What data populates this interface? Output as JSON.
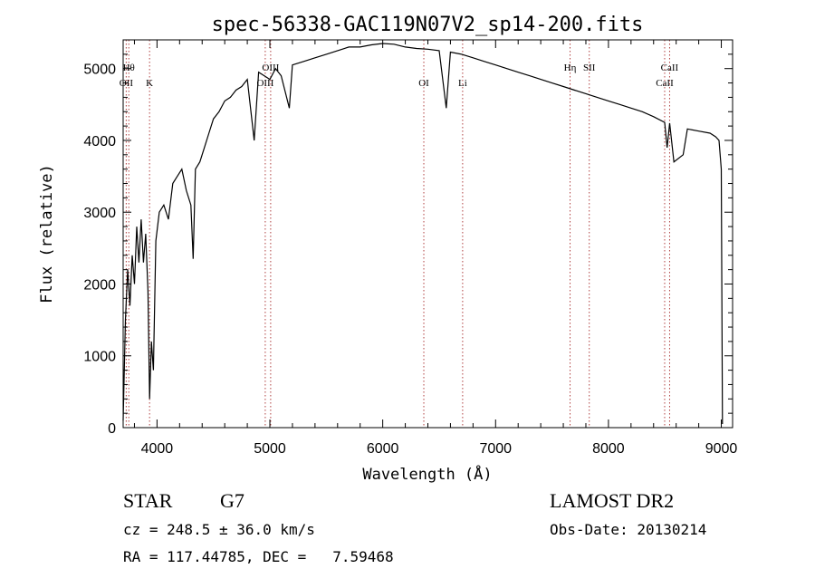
{
  "chart_data": {
    "type": "line",
    "title": "spec-56338-GAC119N07V2_sp14-200.fits",
    "xlabel": "Wavelength (Å)",
    "ylabel": "Flux (relative)",
    "xlim": [
      3700,
      9100
    ],
    "ylim": [
      0,
      5400
    ],
    "x_ticks": [
      4000,
      5000,
      6000,
      7000,
      8000,
      9000
    ],
    "x_tick_labels": [
      "4000",
      "5000",
      "6000",
      "7000",
      "8000",
      "9000"
    ],
    "y_ticks": [
      0,
      1000,
      2000,
      3000,
      4000,
      5000
    ],
    "y_tick_labels": [
      "0",
      "1000",
      "2000",
      "3000",
      "4000",
      "5000"
    ],
    "grid": false,
    "series": [
      {
        "x": [
          3700,
          3720,
          3740,
          3760,
          3780,
          3800,
          3820,
          3840,
          3860,
          3880,
          3900,
          3920,
          3934,
          3950,
          3968,
          3990,
          4020,
          4060,
          4101,
          4140,
          4180,
          4220,
          4260,
          4300,
          4320,
          4340,
          4380,
          4420,
          4460,
          4500,
          4550,
          4600,
          4650,
          4700,
          4750,
          4800,
          4861,
          4900,
          4950,
          5000,
          5050,
          5100,
          5172,
          5200,
          5300,
          5400,
          5500,
          5600,
          5700,
          5800,
          5900,
          6000,
          6100,
          6200,
          6300,
          6400,
          6500,
          6563,
          6600,
          6700,
          6800,
          6900,
          7000,
          7100,
          7200,
          7300,
          7400,
          7500,
          7600,
          7700,
          7800,
          7900,
          8000,
          8100,
          8200,
          8300,
          8400,
          8498,
          8520,
          8542,
          8580,
          8662,
          8700,
          8800,
          8900,
          8950,
          8980,
          9000,
          9010
        ],
        "y": [
          100,
          1500,
          2200,
          1700,
          2400,
          2000,
          2800,
          2300,
          2900,
          2300,
          2700,
          1900,
          400,
          1200,
          800,
          2600,
          3000,
          3100,
          2900,
          3400,
          3500,
          3600,
          3300,
          3100,
          2350,
          3600,
          3700,
          3900,
          4100,
          4300,
          4400,
          4550,
          4600,
          4700,
          4750,
          4850,
          4000,
          4950,
          4900,
          4850,
          5000,
          4900,
          4450,
          5050,
          5100,
          5150,
          5200,
          5250,
          5300,
          5300,
          5330,
          5350,
          5340,
          5300,
          5280,
          5270,
          5250,
          4450,
          5230,
          5200,
          5150,
          5100,
          5050,
          5000,
          4950,
          4900,
          4850,
          4800,
          4750,
          4700,
          4650,
          4600,
          4550,
          4500,
          4450,
          4400,
          4330,
          4250,
          3900,
          4240,
          3700,
          3800,
          4160,
          4130,
          4100,
          4050,
          4000,
          3600,
          50
        ]
      }
    ],
    "line_markers": [
      {
        "x": 3727,
        "label": "OII",
        "row": 2
      },
      {
        "x": 3750,
        "label": "Hθ",
        "row": 1
      },
      {
        "x": 3934,
        "label": "K",
        "row": 2
      },
      {
        "x": 4959,
        "label": "OIII",
        "row": 2
      },
      {
        "x": 5007,
        "label": "OIII",
        "row": 1
      },
      {
        "x": 6364,
        "label": "OI",
        "row": 2
      },
      {
        "x": 6708,
        "label": "Li",
        "row": 2
      },
      {
        "x": 7660,
        "label": "Hη",
        "row": 1
      },
      {
        "x": 7830,
        "label": "SII",
        "row": 1
      },
      {
        "x": 8498,
        "label": "CaII",
        "row": 2
      },
      {
        "x": 8542,
        "label": "CaII",
        "row": 1
      }
    ]
  },
  "info": {
    "object_class": "STAR",
    "subclass": "G7",
    "survey": "LAMOST DR2",
    "cz": "cz = 248.5 ± 36.0 km/s",
    "obs_date": "Obs-Date: 20130214",
    "coords": "RA = 117.44785, DEC =   7.59468"
  },
  "colors": {
    "spectrum": "#000000",
    "marker_lines": "#b04040",
    "text": "#000000"
  }
}
